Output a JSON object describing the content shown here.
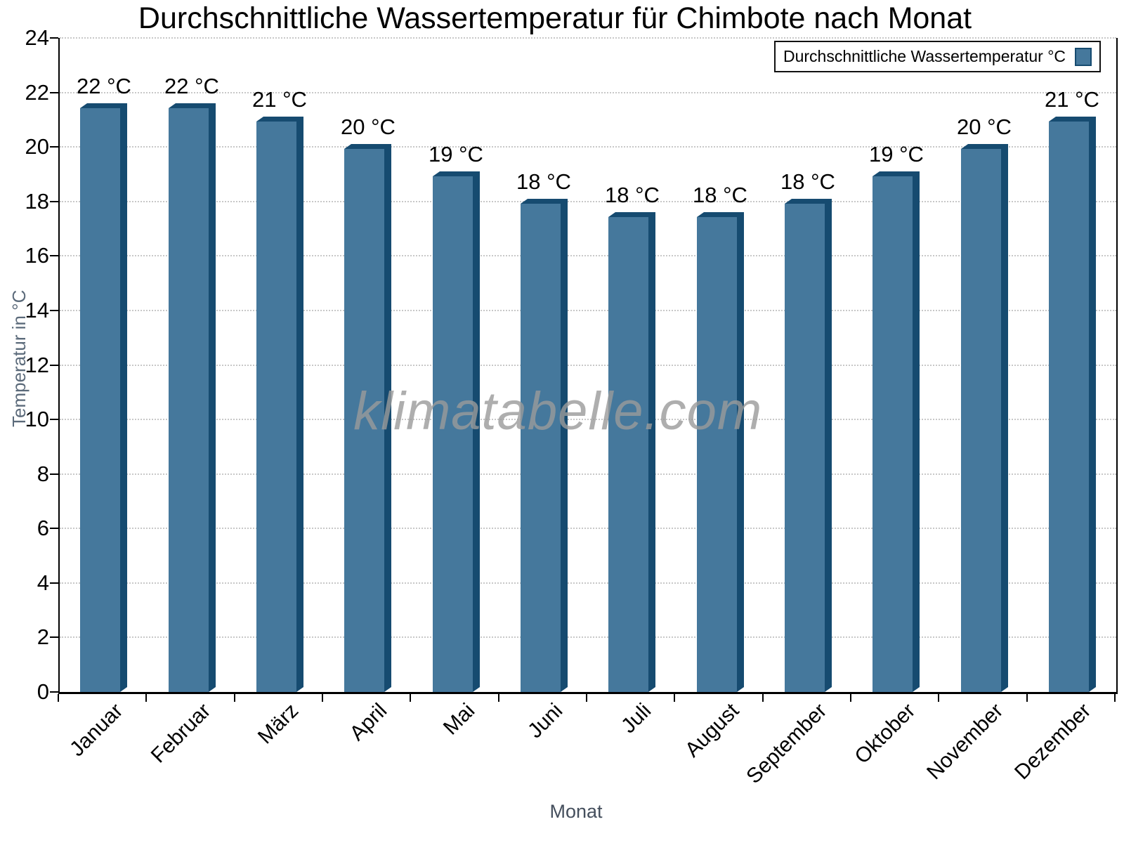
{
  "title": "Durchschnittliche Wassertemperatur für Chimbote nach Monat",
  "watermark": "klimatabelle.com",
  "legend": {
    "label": "Durchschnittliche Wassertemperatur °C"
  },
  "chart_data": {
    "type": "bar",
    "title": "Durchschnittliche Wassertemperatur für Chimbote nach Monat",
    "categories": [
      "Januar",
      "Februar",
      "März",
      "April",
      "Mai",
      "Juni",
      "Juli",
      "August",
      "September",
      "Oktober",
      "November",
      "Dezember"
    ],
    "values": [
      21.6,
      21.6,
      21.1,
      20.1,
      19.1,
      18.1,
      17.6,
      17.6,
      18.1,
      19.1,
      20.1,
      21.1
    ],
    "value_labels": [
      "22 °C",
      "22 °C",
      "21 °C",
      "20 °C",
      "19 °C",
      "18 °C",
      "18 °C",
      "18 °C",
      "18 °C",
      "19 °C",
      "20 °C",
      "21 °C"
    ],
    "xlabel": "Monat",
    "ylabel": "Temperatur in °C",
    "ylim": [
      0,
      24
    ],
    "ytick_step": 2,
    "ytick_labels": [
      "0",
      "2",
      "4",
      "6",
      "8",
      "10",
      "12",
      "14",
      "16",
      "18",
      "20",
      "22",
      "24"
    ],
    "grid": "horizontal-dotted",
    "legend_position": "top-right",
    "colors": {
      "bar_face": "#45789C",
      "bar_edge": "#164B70",
      "grid": "#c8c8c8",
      "axis": "#000000",
      "axis_title": "#5b6a7a",
      "watermark": "#9b9b9b"
    }
  }
}
